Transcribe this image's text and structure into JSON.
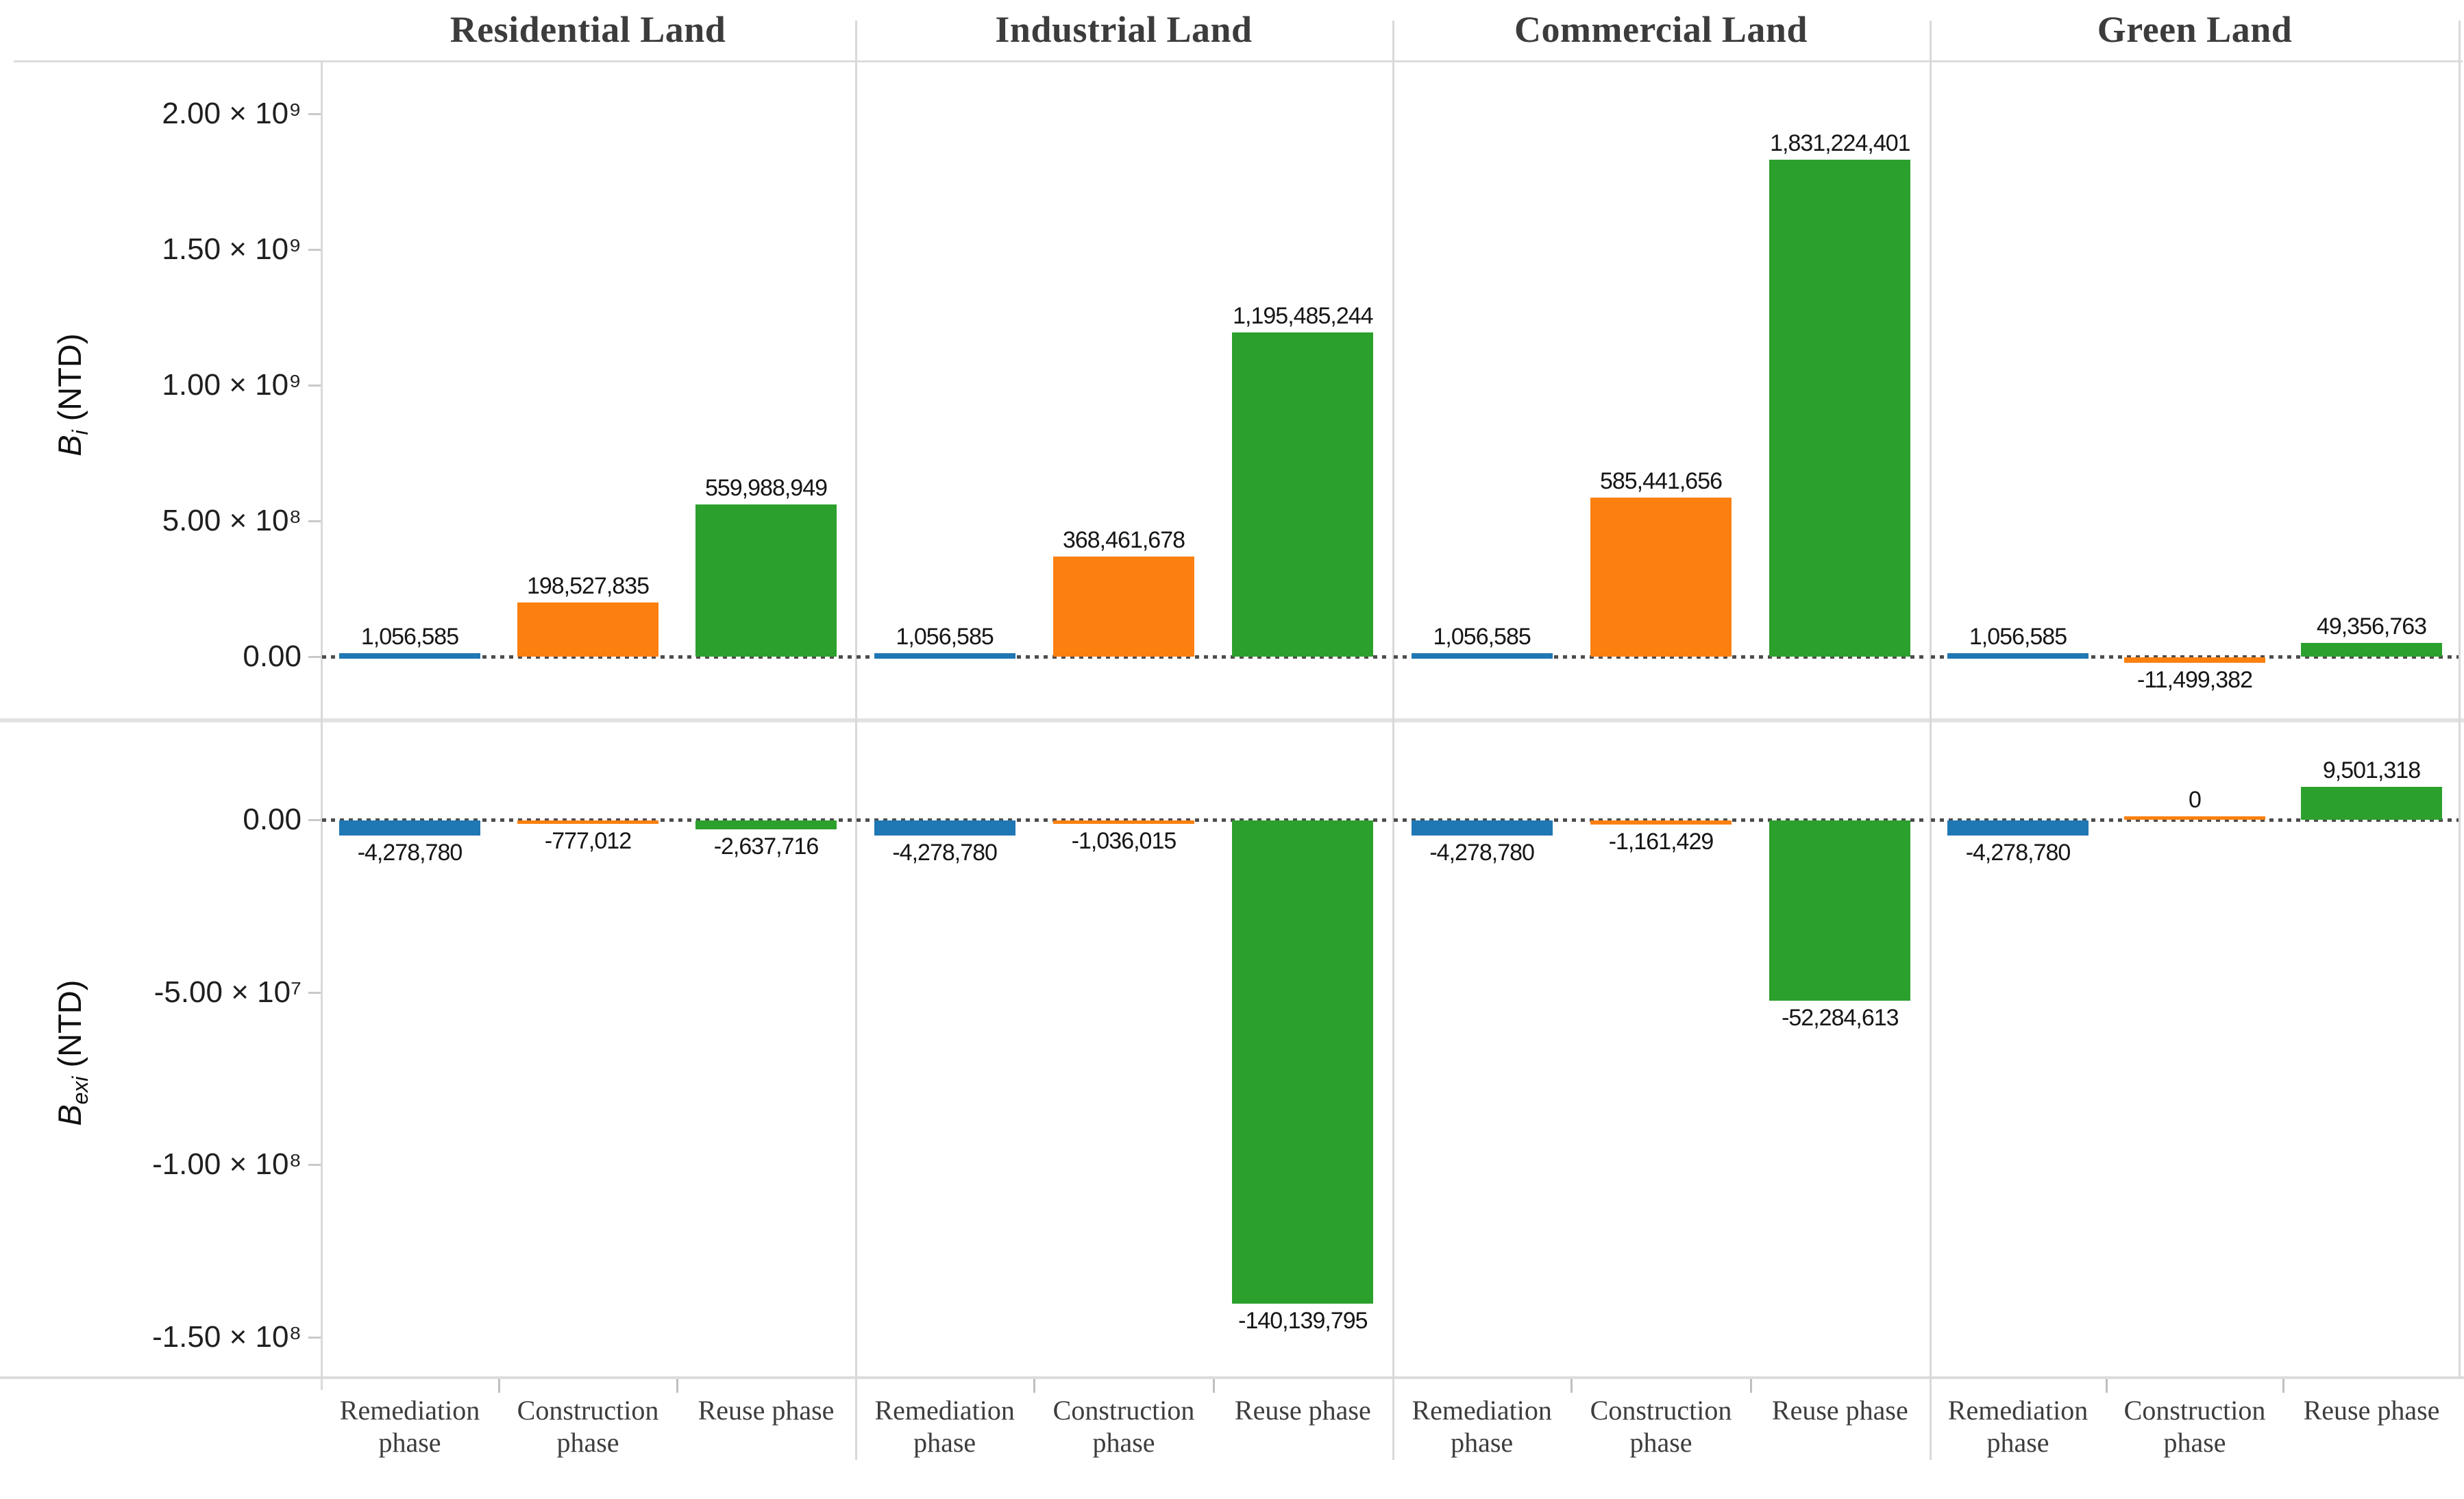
{
  "figure": {
    "bar_colors": [
      "#1f77b4",
      "#fb8010",
      "#2ca02c"
    ],
    "grid_color": "#d9d9d9",
    "zero_line_color": "#4d4d4d",
    "header_text_color": "#3c3c3c",
    "value_label_color": "#161616"
  },
  "chart_data": {
    "type": "bar",
    "layout": "small-multiples 2 rows x 4 columns, shared category axis",
    "panel_titles": [
      "Residential Land",
      "Industrial Land",
      "Commercial Land",
      "Green Land"
    ],
    "categories": [
      "Remediation phase",
      "Construction phase",
      "Reuse phase"
    ],
    "category_label_lines": [
      [
        "Remediation",
        "phase"
      ],
      [
        "Construction",
        "phase"
      ],
      [
        "Reuse phase"
      ]
    ],
    "legend": "none (color encodes phase: blue=Remediation, orange=Construction, green=Reuse)",
    "grid": "off (only panel borders and dotted zero lines)",
    "rows": [
      {
        "id": "bi",
        "ylabel": {
          "base": "B",
          "sub": "i",
          "rest": " (NTD)"
        },
        "ylim": [
          -243000000,
          2230000000
        ],
        "yticks": [
          {
            "label": "2.00 × 10⁹",
            "value": 2000000000
          },
          {
            "label": "1.50 × 10⁹",
            "value": 1500000000
          },
          {
            "label": "1.00 × 10⁹",
            "value": 1000000000
          },
          {
            "label": "5.00 × 10⁸",
            "value": 500000000
          },
          {
            "label": "0.00",
            "value": 0
          }
        ],
        "series": [
          {
            "panel": "Residential Land",
            "values": [
              1056585,
              198527835,
              559988949
            ],
            "labels": [
              "1,056,585",
              "198,527,835",
              "559,988,949"
            ]
          },
          {
            "panel": "Industrial Land",
            "values": [
              1056585,
              368461678,
              1195485244
            ],
            "labels": [
              "1,056,585",
              "368,461,678",
              "1,195,485,244"
            ]
          },
          {
            "panel": "Commercial Land",
            "values": [
              1056585,
              585441656,
              1831224401
            ],
            "labels": [
              "1,056,585",
              "585,441,656",
              "1,831,224,401"
            ]
          },
          {
            "panel": "Green Land",
            "values": [
              1056585,
              -11499382,
              49356763
            ],
            "labels": [
              "1,056,585",
              "-11,499,382",
              "49,356,763"
            ]
          }
        ]
      },
      {
        "id": "bexi",
        "ylabel": {
          "base": "B",
          "sub": "exi",
          "rest": " (NTD)"
        },
        "ylim": [
          -161500000,
          28800000
        ],
        "yticks": [
          {
            "label": "0.00",
            "value": 0
          },
          {
            "label": "-5.00 × 10⁷",
            "value": -50000000
          },
          {
            "label": "-1.00 × 10⁸",
            "value": -100000000
          },
          {
            "label": "-1.50 × 10⁸",
            "value": -150000000
          }
        ],
        "series": [
          {
            "panel": "Residential Land",
            "values": [
              -4278780,
              -777012,
              -2637716
            ],
            "labels": [
              "-4,278,780",
              "-777,012",
              "-2,637,716"
            ]
          },
          {
            "panel": "Industrial Land",
            "values": [
              -4278780,
              -1036015,
              -140139795
            ],
            "labels": [
              "-4,278,780",
              "-1,036,015",
              "-140,139,795"
            ]
          },
          {
            "panel": "Commercial Land",
            "values": [
              -4278780,
              -1161429,
              -52284613
            ],
            "labels": [
              "-4,278,780",
              "-1,161,429",
              "-52,284,613"
            ]
          },
          {
            "panel": "Green Land",
            "values": [
              -4278780,
              0,
              9501318
            ],
            "labels": [
              "-4,278,780",
              "0",
              "9,501,318"
            ]
          }
        ]
      }
    ]
  }
}
